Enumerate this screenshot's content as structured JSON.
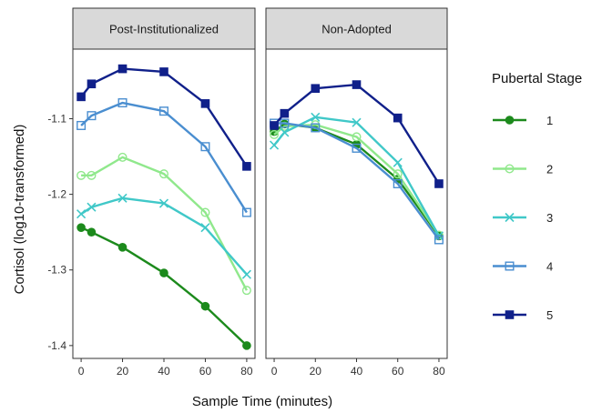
{
  "chart_data": {
    "type": "line",
    "xlabel": "Sample Time (minutes)",
    "ylabel": "Cortisol (log10-transformed)",
    "x_ticks": [
      0,
      20,
      40,
      60,
      80
    ],
    "y_ticks": [
      -1.4,
      -1.3,
      -1.2,
      -1.1
    ],
    "y_tick_labels": [
      "-1.4",
      "-1.3",
      "-1.2",
      "-1.1"
    ],
    "x_tick_labels": [
      "0",
      "20",
      "40",
      "60",
      "80"
    ],
    "xlim": [
      -4,
      84
    ],
    "ylim": [
      -1.417,
      -1.008
    ],
    "grid": false,
    "legend": {
      "title": "Pubertal Stage",
      "placement": "right",
      "items": [
        {
          "label": "1",
          "color": "#1c8a1c",
          "marker": "filled-circle"
        },
        {
          "label": "2",
          "color": "#90e88c",
          "marker": "open-circle"
        },
        {
          "label": "3",
          "color": "#40c8c8",
          "marker": "x"
        },
        {
          "label": "4",
          "color": "#4a8ed0",
          "marker": "open-square"
        },
        {
          "label": "5",
          "color": "#10208a",
          "marker": "filled-square"
        }
      ]
    },
    "panels": [
      {
        "title": "Post-Institutionalized",
        "series": [
          {
            "name": "1",
            "x": [
              0,
              5,
              20,
              40,
              60,
              80
            ],
            "y": [
              -1.244,
              -1.25,
              -1.27,
              -1.304,
              -1.348,
              -1.4
            ]
          },
          {
            "name": "2",
            "x": [
              0,
              5,
              20,
              40,
              60,
              80
            ],
            "y": [
              -1.175,
              -1.175,
              -1.151,
              -1.173,
              -1.224,
              -1.327
            ]
          },
          {
            "name": "3",
            "x": [
              0,
              5,
              20,
              40,
              60,
              80
            ],
            "y": [
              -1.226,
              -1.217,
              -1.205,
              -1.212,
              -1.244,
              -1.306
            ]
          },
          {
            "name": "4",
            "x": [
              0,
              5,
              20,
              40,
              60,
              80
            ],
            "y": [
              -1.109,
              -1.096,
              -1.079,
              -1.09,
              -1.137,
              -1.224
            ]
          },
          {
            "name": "5",
            "x": [
              0,
              5,
              20,
              40,
              60,
              80
            ],
            "y": [
              -1.071,
              -1.054,
              -1.034,
              -1.038,
              -1.08,
              -1.163
            ]
          }
        ]
      },
      {
        "title": "Non-Adopted",
        "series": [
          {
            "name": "1",
            "x": [
              0,
              5,
              20,
              40,
              60,
              80
            ],
            "y": [
              -1.117,
              -1.107,
              -1.112,
              -1.134,
              -1.18,
              -1.255
            ]
          },
          {
            "name": "2",
            "x": [
              0,
              5,
              20,
              40,
              60,
              80
            ],
            "y": [
              -1.121,
              -1.11,
              -1.108,
              -1.124,
              -1.173,
              -1.254
            ]
          },
          {
            "name": "3",
            "x": [
              0,
              5,
              20,
              40,
              60,
              80
            ],
            "y": [
              -1.135,
              -1.118,
              -1.098,
              -1.105,
              -1.158,
              -1.255
            ]
          },
          {
            "name": "4",
            "x": [
              0,
              5,
              20,
              40,
              60,
              80
            ],
            "y": [
              -1.106,
              -1.106,
              -1.112,
              -1.139,
              -1.186,
              -1.26
            ]
          },
          {
            "name": "5",
            "x": [
              0,
              5,
              20,
              40,
              60,
              80
            ],
            "y": [
              -1.109,
              -1.093,
              -1.06,
              -1.055,
              -1.099,
              -1.186
            ]
          }
        ]
      }
    ]
  }
}
